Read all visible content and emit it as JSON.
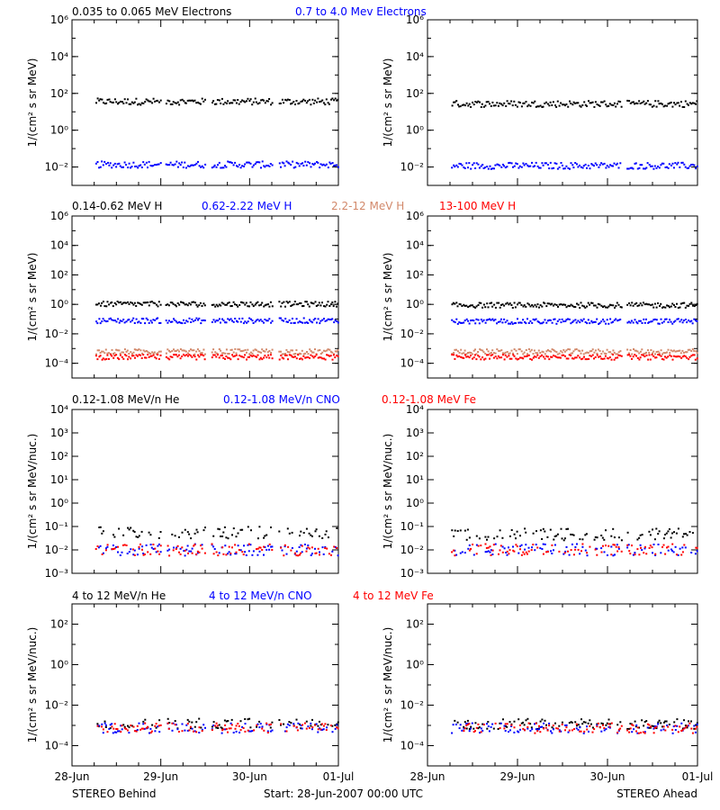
{
  "colors": {
    "black": "#000000",
    "blue": "#0000ff",
    "salmon": "#d2886a",
    "red": "#ff0000"
  },
  "x_axis": {
    "ticks": [
      "28-Jun",
      "29-Jun",
      "30-Jun",
      "01-Jul"
    ],
    "range_days": [
      0,
      3
    ]
  },
  "footer": {
    "left": "STEREO Behind",
    "center": "Start: 28-Jun-2007 00:00 UTC",
    "right": "STEREO Ahead"
  },
  "chart_data": [
    {
      "type": "scatter",
      "row": "electrons",
      "ylabel": "1/(cm² s sr MeV)",
      "yscale": "log",
      "ylim": [
        0.001,
        1000000
      ],
      "yticks": [
        {
          "value": 0.01,
          "label": "10⁻²"
        },
        {
          "value": 1,
          "label": "10⁰"
        },
        {
          "value": 100,
          "label": "10²"
        },
        {
          "value": 10000,
          "label": "10⁴"
        },
        {
          "value": 1000000,
          "label": "10⁶"
        }
      ],
      "legend": [
        {
          "label": "0.035 to 0.065 MeV Electrons",
          "color": "#000000"
        },
        {
          "label": "0.7 to 4.0 Mev Electrons",
          "color": "#0000ff"
        }
      ],
      "series": [
        {
          "name": "0.035 to 0.065 MeV Electrons",
          "color": "#000000",
          "behind_level": 40,
          "ahead_level": 30
        },
        {
          "name": "0.7 to 4.0 Mev Electrons",
          "color": "#0000ff",
          "behind_level": 0.015,
          "ahead_level": 0.013
        }
      ]
    },
    {
      "type": "scatter",
      "row": "protons",
      "ylabel": "1/(cm² s sr MeV)",
      "yscale": "log",
      "ylim": [
        1e-05,
        1000000
      ],
      "yticks": [
        {
          "value": 0.0001,
          "label": "10⁻⁴"
        },
        {
          "value": 0.01,
          "label": "10⁻²"
        },
        {
          "value": 1,
          "label": "10⁰"
        },
        {
          "value": 100,
          "label": "10²"
        },
        {
          "value": 10000,
          "label": "10⁴"
        },
        {
          "value": 1000000,
          "label": "10⁶"
        }
      ],
      "legend": [
        {
          "label": "0.14-0.62 MeV H",
          "color": "#000000"
        },
        {
          "label": "0.62-2.22 MeV H",
          "color": "#0000ff"
        },
        {
          "label": "2.2-12 MeV H",
          "color": "#d2886a"
        },
        {
          "label": "13-100 MeV H",
          "color": "#ff0000"
        }
      ],
      "series": [
        {
          "name": "0.14-0.62 MeV H",
          "color": "#000000",
          "behind_level": 1.2,
          "ahead_level": 1.0
        },
        {
          "name": "0.62-2.22 MeV H",
          "color": "#0000ff",
          "behind_level": 0.09,
          "ahead_level": 0.08
        },
        {
          "name": "2.2-12 MeV H",
          "color": "#d2886a",
          "behind_level": 0.0007,
          "ahead_level": 0.0007
        },
        {
          "name": "13-100 MeV H",
          "color": "#ff0000",
          "behind_level": 0.0003,
          "ahead_level": 0.0003
        }
      ]
    },
    {
      "type": "scatter",
      "row": "low-energy-ions",
      "ylabel": "1/(cm² s sr MeV/nuc.)",
      "yscale": "log",
      "ylim": [
        0.001,
        10000
      ],
      "yticks": [
        {
          "value": 0.001,
          "label": "10⁻³"
        },
        {
          "value": 0.01,
          "label": "10⁻²"
        },
        {
          "value": 0.1,
          "label": "10⁻¹"
        },
        {
          "value": 1,
          "label": "10⁰"
        },
        {
          "value": 10,
          "label": "10¹"
        },
        {
          "value": 100,
          "label": "10²"
        },
        {
          "value": 1000,
          "label": "10³"
        },
        {
          "value": 10000,
          "label": "10⁴"
        }
      ],
      "legend": [
        {
          "label": "0.12-1.08 MeV/n He",
          "color": "#000000"
        },
        {
          "label": "0.12-1.08 MeV/n CNO",
          "color": "#0000ff"
        },
        {
          "label": "0.12-1.08 MeV Fe",
          "color": "#ff0000"
        }
      ],
      "series": [
        {
          "name": "0.12-1.08 MeV/n He",
          "color": "#000000",
          "behind_level": 0.06,
          "ahead_level": 0.05
        },
        {
          "name": "0.12-1.08 MeV/n CNO",
          "color": "#0000ff",
          "behind_level": 0.011,
          "ahead_level": 0.011
        },
        {
          "name": "0.12-1.08 MeV Fe",
          "color": "#ff0000",
          "behind_level": 0.011,
          "ahead_level": 0.011
        }
      ]
    },
    {
      "type": "scatter",
      "row": "high-energy-ions",
      "ylabel": "1/(cm² s sr MeV/nuc.)",
      "yscale": "log",
      "ylim": [
        1e-05,
        1000
      ],
      "yticks": [
        {
          "value": 0.0001,
          "label": "10⁻⁴"
        },
        {
          "value": 0.01,
          "label": "10⁻²"
        },
        {
          "value": 1,
          "label": "10⁰"
        },
        {
          "value": 100,
          "label": "10²"
        }
      ],
      "legend": [
        {
          "label": "4 to 12 MeV/n He",
          "color": "#000000"
        },
        {
          "label": "4 to 12 MeV/n CNO",
          "color": "#0000ff"
        },
        {
          "label": "4 to 12 MeV Fe",
          "color": "#ff0000"
        }
      ],
      "series": [
        {
          "name": "4 to 12 MeV/n He",
          "color": "#000000",
          "behind_level": 0.0014,
          "ahead_level": 0.0013
        },
        {
          "name": "4 to 12 MeV/n CNO",
          "color": "#0000ff",
          "behind_level": 0.0008,
          "ahead_level": 0.0008
        },
        {
          "name": "4 to 12 MeV Fe",
          "color": "#ff0000",
          "behind_level": 0.0008,
          "ahead_level": 0.0008
        }
      ]
    }
  ],
  "data_gaps_days": {
    "behind": [
      [
        0,
        0.26
      ],
      [
        1.0,
        1.04
      ],
      [
        1.5,
        1.56
      ],
      [
        2.25,
        2.32
      ]
    ],
    "ahead": [
      [
        2.15,
        2.2
      ]
    ]
  }
}
